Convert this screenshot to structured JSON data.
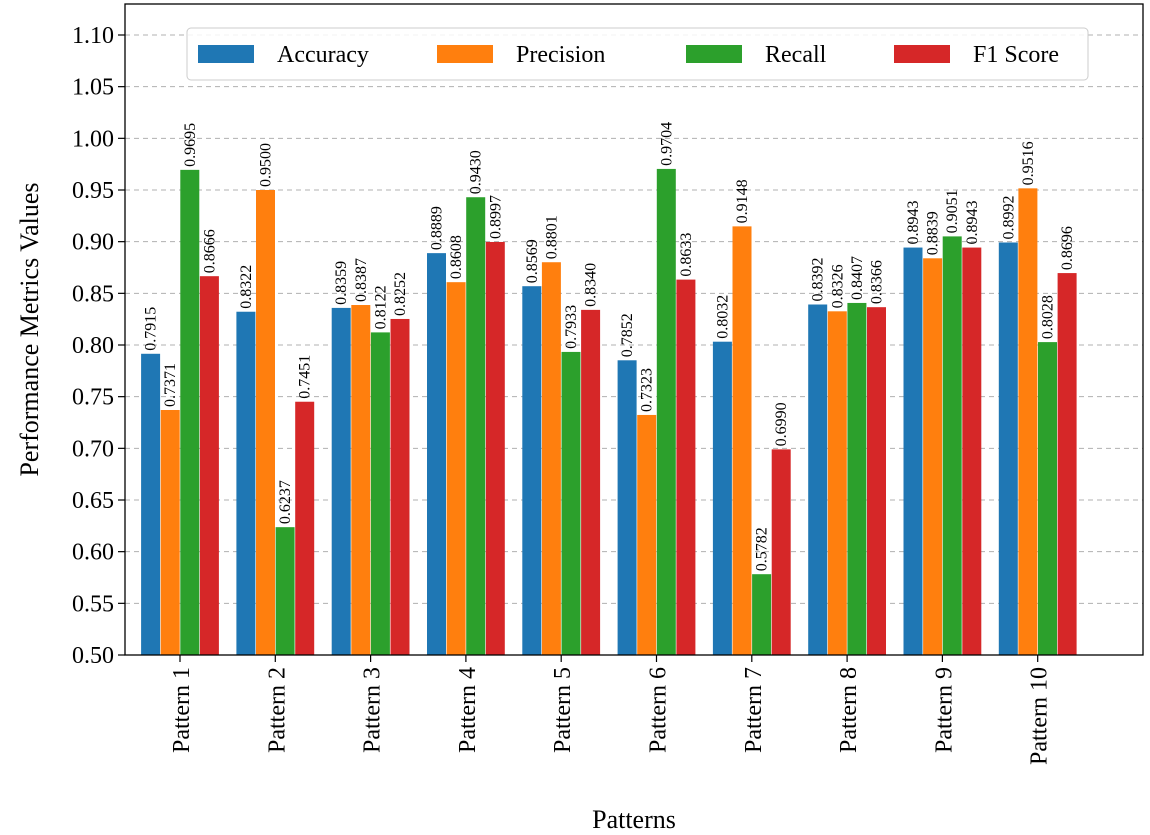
{
  "chart_data": {
    "type": "bar",
    "xlabel": "Patterns",
    "ylabel": "Performance Metrics Values",
    "ylim": [
      0.5,
      1.13
    ],
    "yticks": [
      "0.50",
      "0.55",
      "0.60",
      "0.65",
      "0.70",
      "0.75",
      "0.80",
      "0.85",
      "0.90",
      "0.95",
      "1.00",
      "1.05",
      "1.10"
    ],
    "grid": true,
    "legend_position": "top",
    "categories": [
      "Pattern 1",
      "Pattern 2",
      "Pattern 3",
      "Pattern 4",
      "Pattern 5",
      "Pattern 6",
      "Pattern 7",
      "Pattern 8",
      "Pattern 9",
      "Pattern 10"
    ],
    "series": [
      {
        "name": "Accuracy",
        "color": "#1f77b4",
        "values": [
          0.7915,
          0.8322,
          0.8359,
          0.8889,
          0.8569,
          0.7852,
          0.8032,
          0.8392,
          0.8943,
          0.8992
        ],
        "labels": [
          "0.7915",
          "0.8322",
          "0.8359",
          "0.8889",
          "0.8569",
          "0.7852",
          "0.8032",
          "0.8392",
          "0.8943",
          "0.8992"
        ]
      },
      {
        "name": "Precision",
        "color": "#ff7f0e",
        "values": [
          0.7371,
          0.95,
          0.8387,
          0.8608,
          0.8801,
          0.7323,
          0.9148,
          0.8326,
          0.8839,
          0.9516
        ],
        "labels": [
          "0.7371",
          "0.9500",
          "0.8387",
          "0.8608",
          "0.8801",
          "0.7323",
          "0.9148",
          "0.8326",
          "0.8839",
          "0.9516"
        ]
      },
      {
        "name": "Recall",
        "color": "#2ca02c",
        "values": [
          0.9695,
          0.6237,
          0.8122,
          0.943,
          0.7933,
          0.9704,
          0.5782,
          0.8407,
          0.9051,
          0.8028
        ],
        "labels": [
          "0.9695",
          "0.6237",
          "0.8122",
          "0.9430",
          "0.7933",
          "0.9704",
          "0.5782",
          "0.8407",
          "0.9051",
          "0.8028"
        ]
      },
      {
        "name": "F1 Score",
        "color": "#d62728",
        "values": [
          0.8666,
          0.7451,
          0.8252,
          0.8997,
          0.834,
          0.8633,
          0.699,
          0.8366,
          0.8943,
          0.8696
        ],
        "labels": [
          "0.8666",
          "0.7451",
          "0.8252",
          "0.8997",
          "0.8340",
          "0.8633",
          "0.6990",
          "0.8366",
          "0.8943",
          "0.8696"
        ]
      }
    ]
  }
}
